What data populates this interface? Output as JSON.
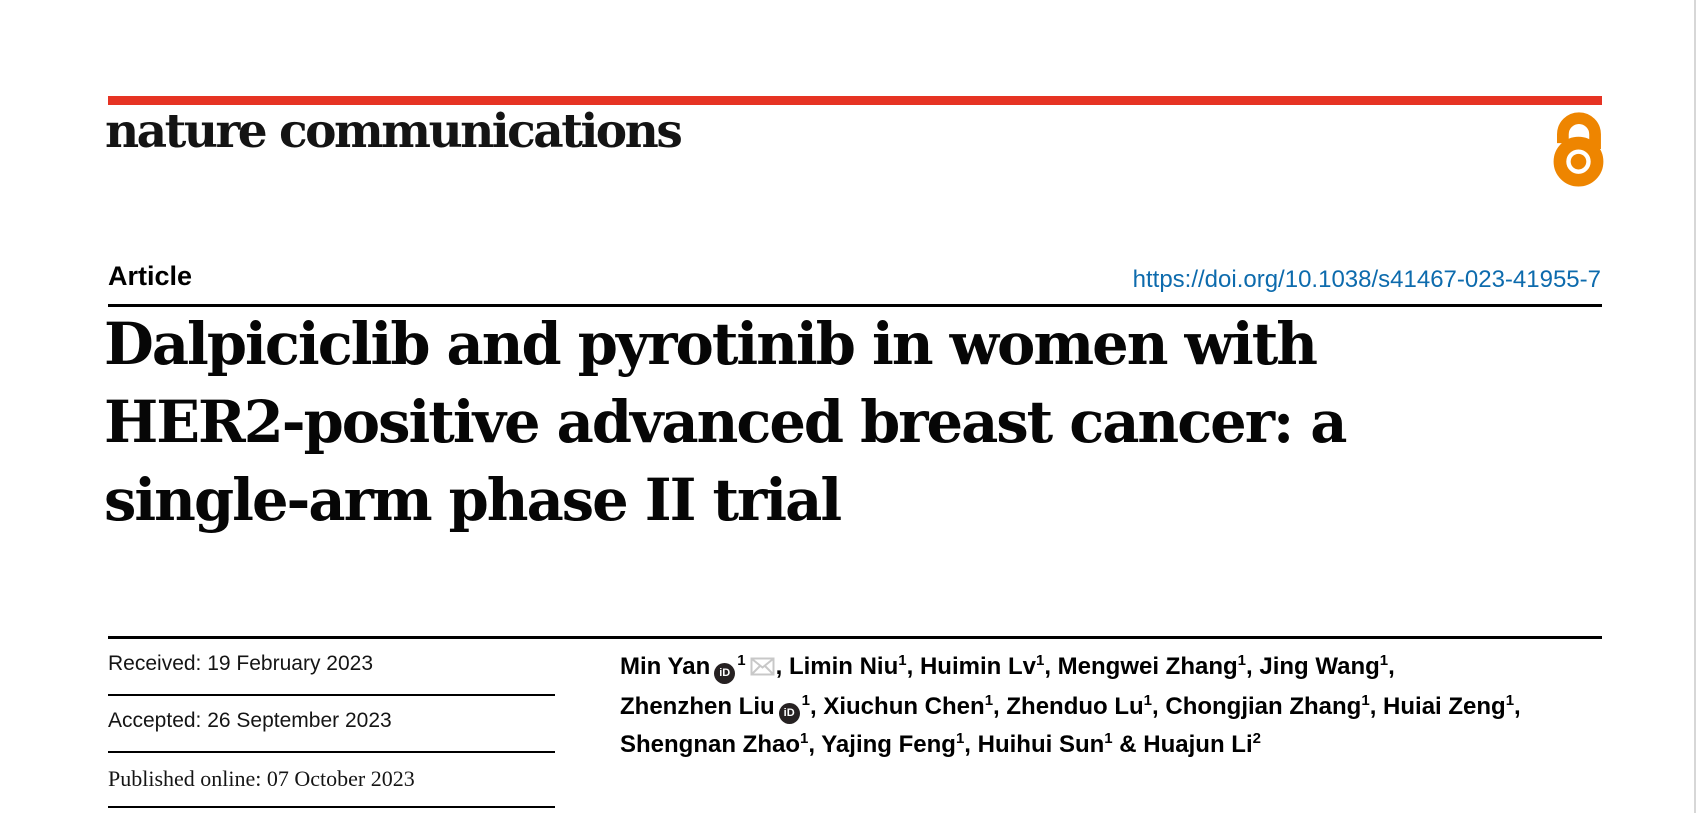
{
  "colors": {
    "brand_red": "#e63323",
    "open_access_orange": "#ee8500",
    "doi_blue": "#0d6bad",
    "envelope_gray": "#c8c8c8",
    "orcid_black": "#262122"
  },
  "journal": {
    "name": "nature communications",
    "open_access_icon": "open-access-padlock"
  },
  "article": {
    "type_label": "Article",
    "doi": "https://doi.org/10.1038/s41467-023-41955-7",
    "title_lines": [
      "Dalpiciclib and pyrotinib in women with",
      "HER2-positive advanced breast cancer: a",
      "single-arm phase II trial"
    ]
  },
  "dates": [
    {
      "text": "Received: 19 February 2023"
    },
    {
      "text": "Accepted: 26 September 2023"
    },
    {
      "text": "Published online: 07 October 2023"
    }
  ],
  "authors": {
    "lines": [
      {
        "segments": [
          {
            "text": "Min Yan",
            "orcid": true,
            "sup": "1",
            "envelope": true,
            "sep": ", "
          },
          {
            "text": "Limin Niu",
            "sup": "1",
            "sep": ", "
          },
          {
            "text": "Huimin Lv",
            "sup": "1",
            "sep": ", "
          },
          {
            "text": "Mengwei Zhang",
            "sup": "1",
            "sep": ", "
          },
          {
            "text": "Jing Wang",
            "sup": "1",
            "sep": ","
          }
        ]
      },
      {
        "segments": [
          {
            "text": "Zhenzhen Liu",
            "orcid": true,
            "sup": "1",
            "sep": ", "
          },
          {
            "text": "Xiuchun Chen",
            "sup": "1",
            "sep": ", "
          },
          {
            "text": "Zhenduo Lu",
            "sup": "1",
            "sep": ", "
          },
          {
            "text": "Chongjian Zhang",
            "sup": "1",
            "sep": ", "
          },
          {
            "text": "Huiai Zeng",
            "sup": "1",
            "sep": ","
          }
        ]
      },
      {
        "segments": [
          {
            "text": "Shengnan Zhao",
            "sup": "1",
            "sep": ", "
          },
          {
            "text": "Yajing Feng",
            "sup": "1",
            "sep": ", "
          },
          {
            "text": "Huihui Sun",
            "sup": "1",
            "sep": " & "
          },
          {
            "text": "Huajun Li",
            "sup": "2",
            "sep": ""
          }
        ]
      }
    ]
  }
}
